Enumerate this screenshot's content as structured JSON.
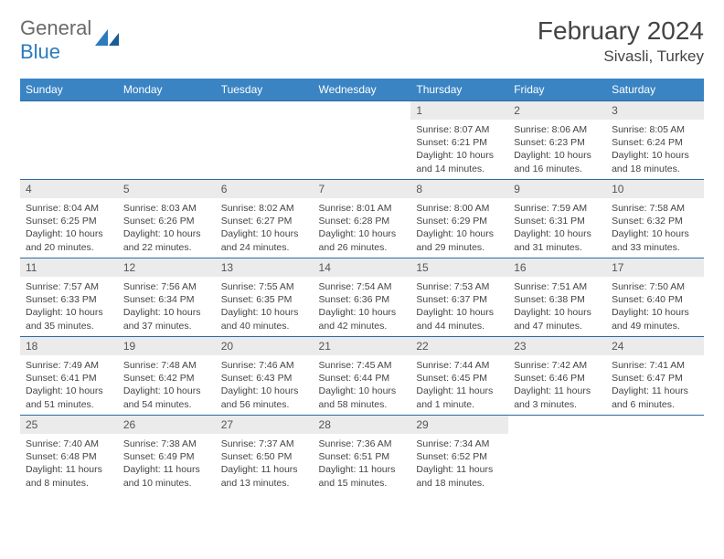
{
  "logo": {
    "general": "General",
    "blue": "Blue"
  },
  "title": "February 2024",
  "location": "Sivasli, Turkey",
  "colors": {
    "header_bg": "#3a84c4",
    "header_text": "#ffffff",
    "daynum_bg": "#ebebeb",
    "cell_border": "#2b6aa0",
    "body_text": "#444444",
    "logo_gray": "#6a6a6a",
    "logo_blue": "#2b7bbf"
  },
  "weekdays": [
    "Sunday",
    "Monday",
    "Tuesday",
    "Wednesday",
    "Thursday",
    "Friday",
    "Saturday"
  ],
  "first_weekday_index": 4,
  "days": [
    {
      "n": 1,
      "sr": "8:07 AM",
      "ss": "6:21 PM",
      "dl": "10 hours and 14 minutes."
    },
    {
      "n": 2,
      "sr": "8:06 AM",
      "ss": "6:23 PM",
      "dl": "10 hours and 16 minutes."
    },
    {
      "n": 3,
      "sr": "8:05 AM",
      "ss": "6:24 PM",
      "dl": "10 hours and 18 minutes."
    },
    {
      "n": 4,
      "sr": "8:04 AM",
      "ss": "6:25 PM",
      "dl": "10 hours and 20 minutes."
    },
    {
      "n": 5,
      "sr": "8:03 AM",
      "ss": "6:26 PM",
      "dl": "10 hours and 22 minutes."
    },
    {
      "n": 6,
      "sr": "8:02 AM",
      "ss": "6:27 PM",
      "dl": "10 hours and 24 minutes."
    },
    {
      "n": 7,
      "sr": "8:01 AM",
      "ss": "6:28 PM",
      "dl": "10 hours and 26 minutes."
    },
    {
      "n": 8,
      "sr": "8:00 AM",
      "ss": "6:29 PM",
      "dl": "10 hours and 29 minutes."
    },
    {
      "n": 9,
      "sr": "7:59 AM",
      "ss": "6:31 PM",
      "dl": "10 hours and 31 minutes."
    },
    {
      "n": 10,
      "sr": "7:58 AM",
      "ss": "6:32 PM",
      "dl": "10 hours and 33 minutes."
    },
    {
      "n": 11,
      "sr": "7:57 AM",
      "ss": "6:33 PM",
      "dl": "10 hours and 35 minutes."
    },
    {
      "n": 12,
      "sr": "7:56 AM",
      "ss": "6:34 PM",
      "dl": "10 hours and 37 minutes."
    },
    {
      "n": 13,
      "sr": "7:55 AM",
      "ss": "6:35 PM",
      "dl": "10 hours and 40 minutes."
    },
    {
      "n": 14,
      "sr": "7:54 AM",
      "ss": "6:36 PM",
      "dl": "10 hours and 42 minutes."
    },
    {
      "n": 15,
      "sr": "7:53 AM",
      "ss": "6:37 PM",
      "dl": "10 hours and 44 minutes."
    },
    {
      "n": 16,
      "sr": "7:51 AM",
      "ss": "6:38 PM",
      "dl": "10 hours and 47 minutes."
    },
    {
      "n": 17,
      "sr": "7:50 AM",
      "ss": "6:40 PM",
      "dl": "10 hours and 49 minutes."
    },
    {
      "n": 18,
      "sr": "7:49 AM",
      "ss": "6:41 PM",
      "dl": "10 hours and 51 minutes."
    },
    {
      "n": 19,
      "sr": "7:48 AM",
      "ss": "6:42 PM",
      "dl": "10 hours and 54 minutes."
    },
    {
      "n": 20,
      "sr": "7:46 AM",
      "ss": "6:43 PM",
      "dl": "10 hours and 56 minutes."
    },
    {
      "n": 21,
      "sr": "7:45 AM",
      "ss": "6:44 PM",
      "dl": "10 hours and 58 minutes."
    },
    {
      "n": 22,
      "sr": "7:44 AM",
      "ss": "6:45 PM",
      "dl": "11 hours and 1 minute."
    },
    {
      "n": 23,
      "sr": "7:42 AM",
      "ss": "6:46 PM",
      "dl": "11 hours and 3 minutes."
    },
    {
      "n": 24,
      "sr": "7:41 AM",
      "ss": "6:47 PM",
      "dl": "11 hours and 6 minutes."
    },
    {
      "n": 25,
      "sr": "7:40 AM",
      "ss": "6:48 PM",
      "dl": "11 hours and 8 minutes."
    },
    {
      "n": 26,
      "sr": "7:38 AM",
      "ss": "6:49 PM",
      "dl": "11 hours and 10 minutes."
    },
    {
      "n": 27,
      "sr": "7:37 AM",
      "ss": "6:50 PM",
      "dl": "11 hours and 13 minutes."
    },
    {
      "n": 28,
      "sr": "7:36 AM",
      "ss": "6:51 PM",
      "dl": "11 hours and 15 minutes."
    },
    {
      "n": 29,
      "sr": "7:34 AM",
      "ss": "6:52 PM",
      "dl": "11 hours and 18 minutes."
    }
  ],
  "labels": {
    "sunrise": "Sunrise: ",
    "sunset": "Sunset: ",
    "daylight": "Daylight: "
  }
}
